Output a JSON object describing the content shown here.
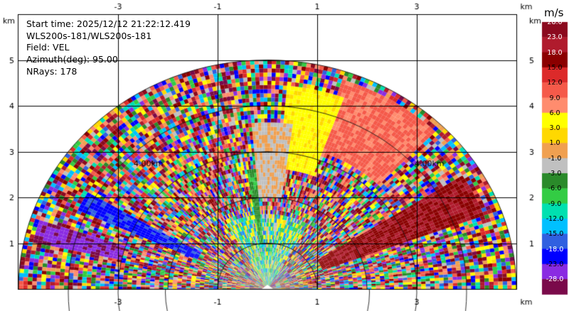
{
  "info": {
    "start_time": "Start time: 2025/12/12 21:22:12.419",
    "instrument": "WLS200s-181/WLS200s-181",
    "field": "Field: VEL",
    "azimuth": "Azimuth(deg): 95.00",
    "nrays": "NRays: 178"
  },
  "axes": {
    "unit_label": "km",
    "x_ticks": [
      "-3",
      "-1",
      "1",
      "3"
    ],
    "y_ticks": [
      "1",
      "2",
      "3",
      "4",
      "5"
    ],
    "x_range": [
      -3.98,
      4.0
    ],
    "y_range": [
      0,
      5.85
    ]
  },
  "range_rings": {
    "labels": [
      "4.00km",
      "4.00km"
    ],
    "radii_km": [
      1,
      2,
      3,
      4,
      5
    ]
  },
  "colorbar": {
    "title": "m/s",
    "labels": [
      "28.0",
      "23.0",
      "18.0",
      "15.0",
      "12.0",
      "9.0",
      "6.0",
      "3.0",
      "1.0",
      "-1.0",
      "-3.0",
      "-6.0",
      "-9.0",
      "-12.0",
      "-15.0",
      "-18.0",
      "-23.0",
      "-28.0"
    ],
    "colors": [
      "#8b0a1e",
      "#b01b2d",
      "#8b0000",
      "#dc2a2a",
      "#f55a4a",
      "#ff8c6e",
      "#ffff00",
      "#ffd800",
      "#f0a050",
      "#c0c0c0",
      "#2a8a2a",
      "#33cc44",
      "#00e0b0",
      "#00c0ff",
      "#3060e0",
      "#0000ff",
      "#8a2be2",
      "#7a0a4a"
    ]
  }
}
